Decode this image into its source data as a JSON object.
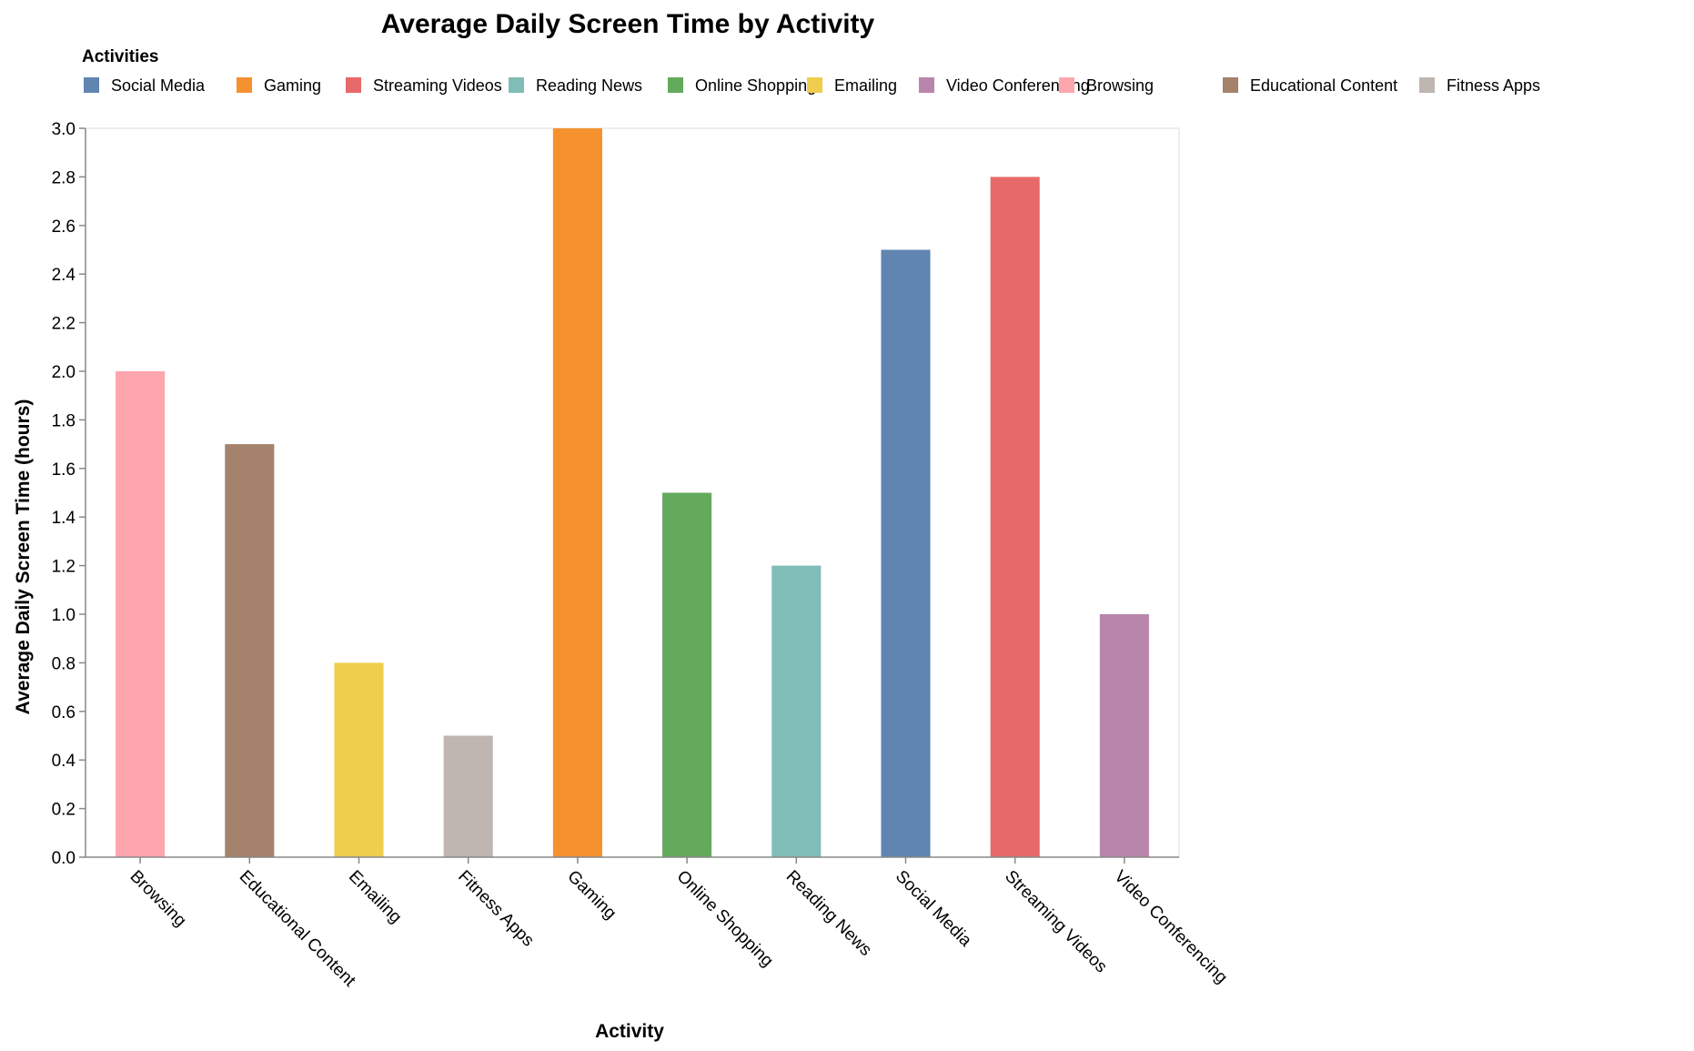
{
  "chart_data": {
    "type": "bar",
    "title": "Average Daily Screen Time by Activity",
    "xlabel": "Activity",
    "ylabel": "Average Daily Screen Time (hours)",
    "ylim": [
      0,
      3.0
    ],
    "yticks": [
      0.0,
      0.2,
      0.4,
      0.6,
      0.8,
      1.0,
      1.2,
      1.4,
      1.6,
      1.8,
      2.0,
      2.2,
      2.4,
      2.6,
      2.8,
      3.0
    ],
    "ytick_decimals": 1,
    "grid": false,
    "legend": {
      "title": "Activities",
      "position": "top",
      "entries": [
        {
          "label": "Social Media",
          "color": "#6085b0"
        },
        {
          "label": "Gaming",
          "color": "#f5912e"
        },
        {
          "label": "Streaming Videos",
          "color": "#e86969"
        },
        {
          "label": "Reading News",
          "color": "#80bdb7"
        },
        {
          "label": "Online Shopping",
          "color": "#64aa5c"
        },
        {
          "label": "Emailing",
          "color": "#efcd4d"
        },
        {
          "label": "Video Conferencing",
          "color": "#b886ad"
        },
        {
          "label": "Browsing",
          "color": "#fea6ae"
        },
        {
          "label": "Educational Content",
          "color": "#a4826c"
        },
        {
          "label": "Fitness Apps",
          "color": "#bfb6b1"
        }
      ]
    },
    "categories": [
      "Browsing",
      "Educational Content",
      "Emailing",
      "Fitness Apps",
      "Gaming",
      "Online Shopping",
      "Reading News",
      "Social Media",
      "Streaming Videos",
      "Video Conferencing"
    ],
    "values": [
      2.0,
      1.7,
      0.8,
      0.5,
      3.0,
      1.5,
      1.2,
      2.5,
      2.8,
      1.0
    ],
    "bar_colors": [
      "#fea6ae",
      "#a4826c",
      "#efcd4d",
      "#bfb6b1",
      "#f5912e",
      "#64aa5c",
      "#80bdb7",
      "#6085b0",
      "#e86969",
      "#b886ad"
    ]
  }
}
